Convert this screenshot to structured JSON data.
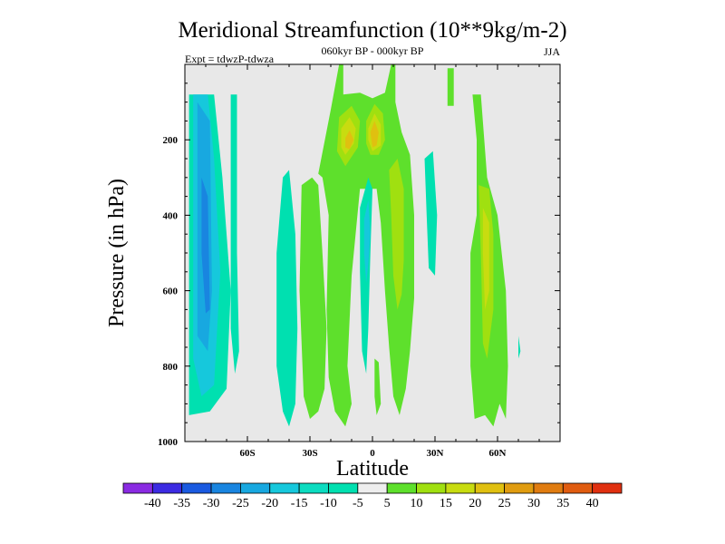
{
  "chart_data": {
    "type": "contour",
    "title": "Meridional Streamfunction (10**9kg/m-2)",
    "subtitle": "060kyr BP - 000kyr BP",
    "left_note": "Expt = tdwzP-tdwza",
    "right_note": "JJA",
    "xlabel": "Latitude",
    "ylabel": "Pressure (in hPa)",
    "xlim": [
      -90,
      90
    ],
    "ylim": [
      1000,
      0
    ],
    "x_ticks": [
      {
        "value": -60,
        "label": "60S"
      },
      {
        "value": -30,
        "label": "30S"
      },
      {
        "value": 0,
        "label": "0"
      },
      {
        "value": 30,
        "label": "30N"
      },
      {
        "value": 60,
        "label": "60N"
      }
    ],
    "y_ticks": [
      {
        "value": 200,
        "label": "200"
      },
      {
        "value": 400,
        "label": "400"
      },
      {
        "value": 600,
        "label": "600"
      },
      {
        "value": 800,
        "label": "800"
      },
      {
        "value": 1000,
        "label": "1000"
      }
    ],
    "colorbar": {
      "labels": [
        "-40",
        "-35",
        "-30",
        "-25",
        "-20",
        "-15",
        "-10",
        "-5",
        "5",
        "10",
        "15",
        "20",
        "25",
        "30",
        "35",
        "40"
      ],
      "colors": [
        "#8a2be2",
        "#3c2be2",
        "#1a5ae0",
        "#1985e0",
        "#18a8e0",
        "#16c8dc",
        "#0cdcc0",
        "#00e0b0",
        "#eeeeee",
        "#5ee02c",
        "#a0e010",
        "#c8dc10",
        "#e0c010",
        "#e09c10",
        "#e07c10",
        "#e05c10",
        "#e03010"
      ]
    },
    "regions": [
      {
        "level": -10,
        "color": "#00e0b0",
        "points": [
          [
            -88,
            80
          ],
          [
            -76,
            80
          ],
          [
            -72,
            300
          ],
          [
            -68,
            600
          ],
          [
            -70,
            860
          ],
          [
            -78,
            920
          ],
          [
            -88,
            930
          ],
          [
            -88,
            800
          ]
        ]
      },
      {
        "level": -15,
        "color": "#16c8dc",
        "points": [
          [
            -86,
            80
          ],
          [
            -79,
            80
          ],
          [
            -76,
            250
          ],
          [
            -73,
            550
          ],
          [
            -76,
            850
          ],
          [
            -82,
            880
          ],
          [
            -86,
            780
          ]
        ]
      },
      {
        "level": -20,
        "color": "#18a8e0",
        "points": [
          [
            -84,
            100
          ],
          [
            -78,
            150
          ],
          [
            -77,
            600
          ],
          [
            -79,
            760
          ],
          [
            -84,
            720
          ]
        ]
      },
      {
        "level": -25,
        "color": "#1985e0",
        "points": [
          [
            -82,
            300
          ],
          [
            -79,
            350
          ],
          [
            -78,
            650
          ],
          [
            -80,
            660
          ],
          [
            -82,
            500
          ]
        ]
      },
      {
        "level": -10,
        "color": "#00e0b0",
        "points": [
          [
            -68,
            80
          ],
          [
            -65,
            80
          ],
          [
            -65,
            500
          ],
          [
            -64,
            760
          ],
          [
            -66,
            820
          ],
          [
            -68,
            700
          ]
        ]
      },
      {
        "level": -10,
        "color": "#00e0b0",
        "points": [
          [
            -43,
            300
          ],
          [
            -40,
            280
          ],
          [
            -37,
            450
          ],
          [
            -36,
            700
          ],
          [
            -37,
            900
          ],
          [
            -40,
            960
          ],
          [
            -43,
            920
          ],
          [
            -46,
            800
          ],
          [
            -46,
            500
          ]
        ]
      },
      {
        "level": 5,
        "color": "#5ee02c",
        "points": [
          [
            -34,
            320
          ],
          [
            -29,
            300
          ],
          [
            -26,
            320
          ],
          [
            -24,
            500
          ],
          [
            -22,
            700
          ],
          [
            -23,
            860
          ],
          [
            -26,
            920
          ],
          [
            -30,
            940
          ],
          [
            -33,
            880
          ],
          [
            -35,
            600
          ]
        ]
      },
      {
        "level": 5,
        "color": "#5ee02c",
        "points": [
          [
            -16,
            0
          ],
          [
            -14,
            0
          ],
          [
            -14,
            80
          ],
          [
            -6,
            75
          ],
          [
            0,
            90
          ],
          [
            6,
            75
          ],
          [
            9,
            0
          ],
          [
            11,
            0
          ],
          [
            11,
            100
          ],
          [
            14,
            180
          ],
          [
            18,
            240
          ],
          [
            20,
            400
          ],
          [
            20,
            620
          ],
          [
            18,
            760
          ],
          [
            16,
            860
          ],
          [
            13,
            930
          ],
          [
            10,
            880
          ],
          [
            8,
            750
          ],
          [
            6,
            600
          ],
          [
            4,
            420
          ],
          [
            2,
            330
          ],
          [
            -6,
            330
          ],
          [
            -10,
            560
          ],
          [
            -12,
            800
          ],
          [
            -10,
            900
          ],
          [
            -13,
            960
          ],
          [
            -18,
            920
          ],
          [
            -21,
            830
          ],
          [
            -22,
            650
          ],
          [
            -21,
            400
          ],
          [
            -24,
            300
          ],
          [
            -26,
            290
          ],
          [
            -20,
            120
          ]
        ]
      },
      {
        "level": 5,
        "color": "#5ee02c",
        "points": [
          [
            1,
            780
          ],
          [
            3,
            790
          ],
          [
            4,
            900
          ],
          [
            2,
            930
          ],
          [
            1,
            880
          ]
        ]
      },
      {
        "level": 10,
        "color": "#a0e010",
        "points": [
          [
            -16,
            140
          ],
          [
            -10,
            110
          ],
          [
            -6,
            150
          ],
          [
            -7,
            220
          ],
          [
            -13,
            270
          ],
          [
            -17,
            230
          ]
        ]
      },
      {
        "level": 15,
        "color": "#c8dc10",
        "points": [
          [
            -15,
            170
          ],
          [
            -11,
            140
          ],
          [
            -8,
            170
          ],
          [
            -9,
            210
          ],
          [
            -13,
            240
          ],
          [
            -15,
            220
          ]
        ]
      },
      {
        "level": 20,
        "color": "#e0c010",
        "points": [
          [
            -13,
            195
          ],
          [
            -11,
            175
          ],
          [
            -9,
            200
          ],
          [
            -11,
            225
          ],
          [
            -13,
            220
          ]
        ]
      },
      {
        "level": 10,
        "color": "#a0e010",
        "points": [
          [
            -3,
            150
          ],
          [
            1,
            105
          ],
          [
            5,
            130
          ],
          [
            6,
            200
          ],
          [
            3,
            240
          ],
          [
            -1,
            240
          ],
          [
            -3,
            210
          ]
        ]
      },
      {
        "level": 15,
        "color": "#c8dc10",
        "points": [
          [
            -2,
            170
          ],
          [
            1,
            130
          ],
          [
            4,
            160
          ],
          [
            4,
            215
          ],
          [
            0,
            230
          ],
          [
            -2,
            200
          ]
        ]
      },
      {
        "level": 20,
        "color": "#e0c010",
        "points": [
          [
            -1,
            180
          ],
          [
            1,
            150
          ],
          [
            3,
            180
          ],
          [
            2,
            215
          ],
          [
            0,
            220
          ]
        ]
      },
      {
        "level": 10,
        "color": "#a0e010",
        "points": [
          [
            8,
            280
          ],
          [
            12,
            250
          ],
          [
            15,
            330
          ],
          [
            15,
            520
          ],
          [
            14,
            610
          ],
          [
            12,
            650
          ],
          [
            10,
            560
          ],
          [
            9,
            400
          ]
        ]
      },
      {
        "level": -10,
        "color": "#00e0b0",
        "points": [
          [
            -6,
            380
          ],
          [
            -2,
            300
          ],
          [
            0,
            330
          ],
          [
            -1,
            500
          ],
          [
            -2,
            700
          ],
          [
            -3,
            820
          ],
          [
            -5,
            760
          ],
          [
            -6,
            550
          ]
        ]
      },
      {
        "level": -15,
        "color": "#16c8dc",
        "points": [
          [
            -4,
            410
          ],
          [
            -2,
            360
          ],
          [
            -1,
            450
          ],
          [
            -2,
            530
          ],
          [
            -3,
            580
          ],
          [
            -4,
            500
          ]
        ]
      },
      {
        "level": -10,
        "color": "#00e0b0",
        "points": [
          [
            25,
            250
          ],
          [
            29,
            230
          ],
          [
            31,
            400
          ],
          [
            30,
            560
          ],
          [
            27,
            540
          ],
          [
            26,
            400
          ]
        ]
      },
      {
        "level": 5,
        "color": "#5ee02c",
        "points": [
          [
            36,
            10
          ],
          [
            39,
            10
          ],
          [
            39,
            110
          ],
          [
            36,
            110
          ]
        ]
      },
      {
        "level": 5,
        "color": "#5ee02c",
        "points": [
          [
            48,
            80
          ],
          [
            52,
            80
          ],
          [
            55,
            300
          ],
          [
            60,
            400
          ],
          [
            64,
            600
          ],
          [
            65,
            800
          ],
          [
            64,
            940
          ],
          [
            61,
            900
          ],
          [
            58,
            960
          ],
          [
            54,
            930
          ],
          [
            49,
            940
          ],
          [
            47,
            800
          ],
          [
            47,
            500
          ],
          [
            50,
            400
          ],
          [
            50,
            200
          ]
        ]
      },
      {
        "level": 10,
        "color": "#a0e010",
        "points": [
          [
            51,
            320
          ],
          [
            56,
            330
          ],
          [
            58,
            450
          ],
          [
            58,
            650
          ],
          [
            55,
            780
          ],
          [
            53,
            740
          ],
          [
            52,
            500
          ]
        ]
      },
      {
        "level": 15,
        "color": "#c8dc10",
        "points": [
          [
            53,
            380
          ],
          [
            56,
            420
          ],
          [
            56,
            600
          ],
          [
            54,
            650
          ],
          [
            53,
            500
          ]
        ]
      },
      {
        "level": -10,
        "color": "#00e0b0",
        "points": [
          [
            70,
            720
          ],
          [
            71,
            760
          ],
          [
            70,
            780
          ]
        ]
      }
    ]
  }
}
